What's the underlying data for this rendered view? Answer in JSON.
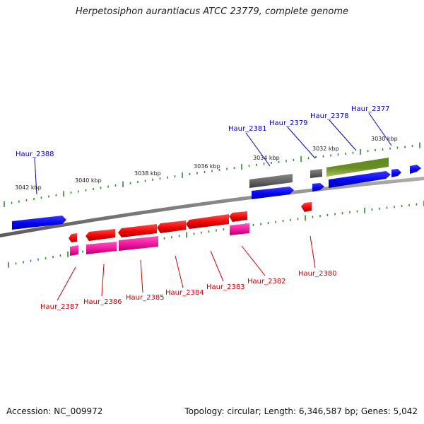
{
  "title": "Herpetosiphon aurantiacus ATCC 23779, complete genome",
  "footer": {
    "accession": "Accession: NC_009972",
    "topology": "Topology: circular; Length: 6,346,587 bp; Genes: 5,042"
  },
  "colors": {
    "backbone": "#808080",
    "tick": "#2e8b2e",
    "blue": "#0000ff",
    "red": "#ff0000",
    "magenta": "#ff1aa0",
    "gray": "#606060",
    "olive": "#6b8e23",
    "label_blue": "#0000cc",
    "label_red": "#cc0000"
  },
  "ticks": [
    "3042 kbp",
    "3040 kbp",
    "3038 kbp",
    "3036 kbp",
    "3034 kbp",
    "3032 kbp",
    "3030 kbp"
  ],
  "genes_top": [
    "Haur_2388",
    "Haur_2381",
    "Haur_2379",
    "Haur_2378",
    "Haur_2377"
  ],
  "genes_bottom": [
    "Haur_2387",
    "Haur_2386",
    "Haur_2385",
    "Haur_2384",
    "Haur_2383",
    "Haur_2382",
    "Haur_2380"
  ]
}
